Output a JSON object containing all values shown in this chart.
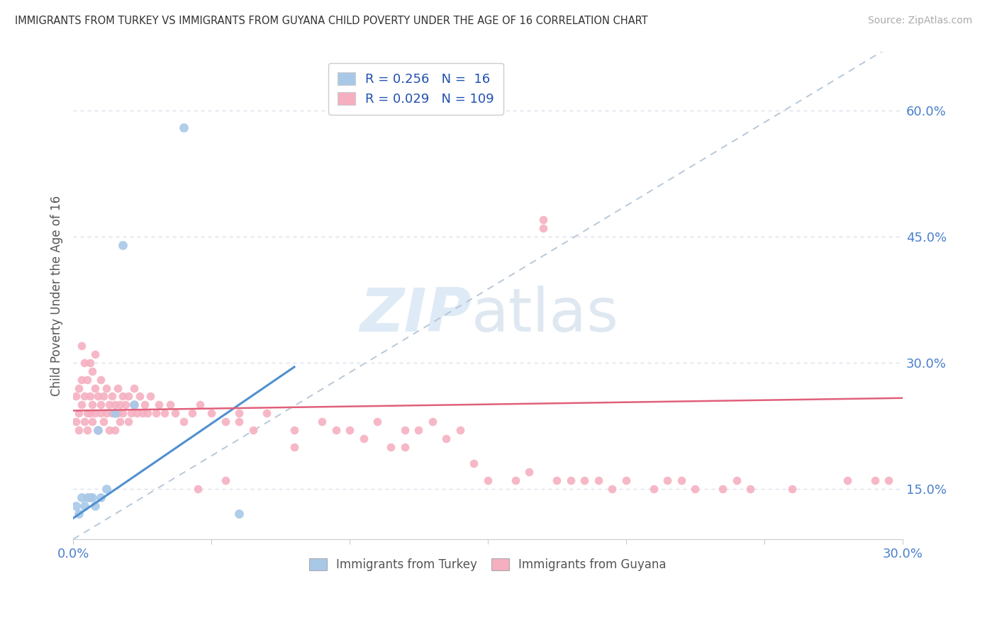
{
  "title": "IMMIGRANTS FROM TURKEY VS IMMIGRANTS FROM GUYANA CHILD POVERTY UNDER THE AGE OF 16 CORRELATION CHART",
  "source": "Source: ZipAtlas.com",
  "ylabel": "Child Poverty Under the Age of 16",
  "xlim": [
    0.0,
    0.3
  ],
  "ylim": [
    0.09,
    0.67
  ],
  "ytick_right_vals": [
    0.15,
    0.3,
    0.45,
    0.6
  ],
  "ytick_right_labels": [
    "15.0%",
    "30.0%",
    "45.0%",
    "60.0%"
  ],
  "turkey_R": 0.256,
  "turkey_N": 16,
  "guyana_R": 0.029,
  "guyana_N": 109,
  "turkey_color": "#a8c8e8",
  "guyana_color": "#f5afc0",
  "turkey_line_color": "#5090d0",
  "guyana_line_color": "#e0607a",
  "ref_line_color": "#b8c8d8",
  "background_color": "#ffffff",
  "grid_color": "#d8dde8",
  "legend_R_color": "#2050b0",
  "turkey_x": [
    0.001,
    0.002,
    0.003,
    0.004,
    0.005,
    0.006,
    0.007,
    0.008,
    0.009,
    0.01,
    0.012,
    0.015,
    0.018,
    0.022,
    0.04,
    0.06
  ],
  "turkey_y": [
    0.13,
    0.12,
    0.14,
    0.13,
    0.14,
    0.14,
    0.14,
    0.13,
    0.22,
    0.14,
    0.15,
    0.24,
    0.44,
    0.25,
    0.58,
    0.12
  ],
  "guyana_x": [
    0.001,
    0.001,
    0.002,
    0.002,
    0.002,
    0.003,
    0.003,
    0.003,
    0.004,
    0.004,
    0.004,
    0.005,
    0.005,
    0.005,
    0.006,
    0.006,
    0.006,
    0.007,
    0.007,
    0.007,
    0.008,
    0.008,
    0.008,
    0.009,
    0.009,
    0.01,
    0.01,
    0.01,
    0.011,
    0.011,
    0.012,
    0.012,
    0.013,
    0.013,
    0.014,
    0.014,
    0.015,
    0.015,
    0.016,
    0.016,
    0.017,
    0.017,
    0.018,
    0.018,
    0.019,
    0.02,
    0.02,
    0.021,
    0.022,
    0.022,
    0.023,
    0.024,
    0.025,
    0.026,
    0.027,
    0.028,
    0.03,
    0.031,
    0.033,
    0.035,
    0.037,
    0.04,
    0.043,
    0.046,
    0.05,
    0.055,
    0.06,
    0.065,
    0.07,
    0.08,
    0.09,
    0.1,
    0.11,
    0.12,
    0.13,
    0.14,
    0.16,
    0.17,
    0.18,
    0.19,
    0.2,
    0.21,
    0.22,
    0.24,
    0.26,
    0.28,
    0.29,
    0.295,
    0.17,
    0.12,
    0.15,
    0.08,
    0.06,
    0.055,
    0.045,
    0.095,
    0.105,
    0.115,
    0.125,
    0.135,
    0.145,
    0.165,
    0.175,
    0.185,
    0.195,
    0.215,
    0.225,
    0.235,
    0.245
  ],
  "guyana_y": [
    0.23,
    0.26,
    0.24,
    0.27,
    0.22,
    0.28,
    0.25,
    0.32,
    0.26,
    0.3,
    0.23,
    0.24,
    0.28,
    0.22,
    0.26,
    0.3,
    0.24,
    0.25,
    0.29,
    0.23,
    0.27,
    0.24,
    0.31,
    0.26,
    0.22,
    0.25,
    0.28,
    0.24,
    0.26,
    0.23,
    0.27,
    0.24,
    0.25,
    0.22,
    0.26,
    0.24,
    0.25,
    0.22,
    0.27,
    0.24,
    0.25,
    0.23,
    0.26,
    0.24,
    0.25,
    0.23,
    0.26,
    0.24,
    0.25,
    0.27,
    0.24,
    0.26,
    0.24,
    0.25,
    0.24,
    0.26,
    0.24,
    0.25,
    0.24,
    0.25,
    0.24,
    0.23,
    0.24,
    0.25,
    0.24,
    0.23,
    0.24,
    0.22,
    0.24,
    0.22,
    0.23,
    0.22,
    0.23,
    0.22,
    0.23,
    0.22,
    0.16,
    0.47,
    0.16,
    0.16,
    0.16,
    0.15,
    0.16,
    0.16,
    0.15,
    0.16,
    0.16,
    0.16,
    0.46,
    0.2,
    0.16,
    0.2,
    0.23,
    0.16,
    0.15,
    0.22,
    0.21,
    0.2,
    0.22,
    0.21,
    0.18,
    0.17,
    0.16,
    0.16,
    0.15,
    0.16,
    0.15,
    0.15,
    0.15
  ],
  "turkey_line_x": [
    0.0,
    0.08
  ],
  "turkey_line_y": [
    0.115,
    0.295
  ],
  "guyana_line_x": [
    0.0,
    0.3
  ],
  "guyana_line_y": [
    0.243,
    0.258
  ],
  "ref_line_x": [
    0.0,
    0.3
  ],
  "ref_line_y": [
    0.09,
    0.685
  ]
}
